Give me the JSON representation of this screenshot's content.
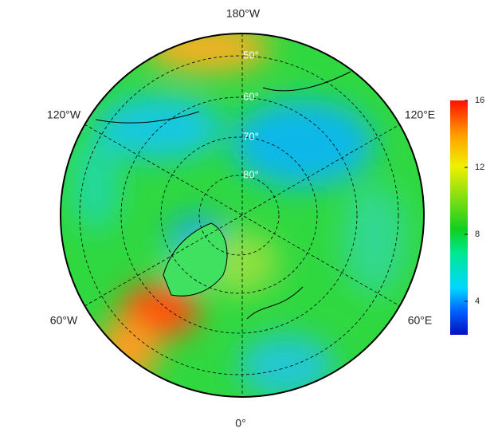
{
  "map": {
    "longitude_labels": [
      "180°W",
      "120°W",
      "120°E",
      "60°W",
      "60°E",
      "0°"
    ],
    "latitude_labels": [
      "50°",
      "60°",
      "70°",
      "80°"
    ]
  },
  "colorbar": {
    "range": [
      2,
      16
    ],
    "ticks": [
      4,
      8,
      12,
      16
    ]
  }
}
